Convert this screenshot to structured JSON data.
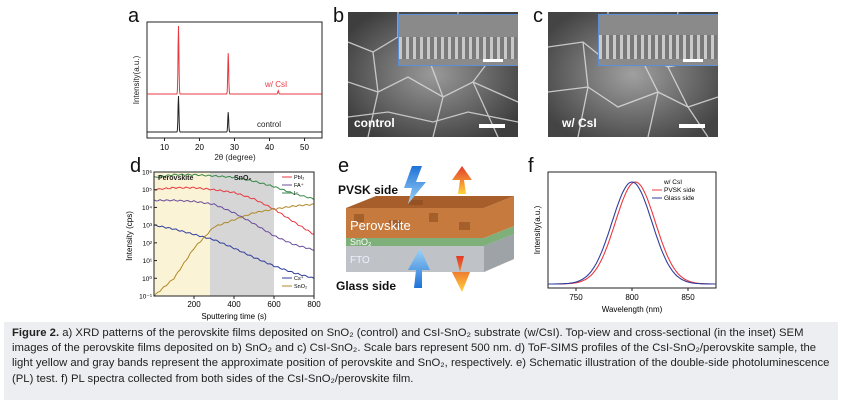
{
  "panel_letters": {
    "a": "a",
    "b": "b",
    "c": "c",
    "d": "d",
    "e": "e",
    "f": "f"
  },
  "panel_a": {
    "ylabel": "Intensity(a.u.)",
    "xlabel": "2θ (degree)",
    "xticks": [
      "10",
      "20",
      "30",
      "40",
      "50"
    ],
    "series": [
      {
        "name": "w/ CsI",
        "color": "#e8393f"
      },
      {
        "name": "control",
        "color": "#222222"
      }
    ]
  },
  "panel_b": {
    "label": "control"
  },
  "panel_c": {
    "label": "w/ CsI"
  },
  "panel_d": {
    "ylabel": "Intensity (cps)",
    "xlabel": "Sputtering time (s)",
    "yticks": [
      "10⁶",
      "10⁵",
      "10⁴",
      "10³",
      "10²",
      "10¹",
      "10⁰",
      "10⁻¹"
    ],
    "xticks": [
      "200",
      "400",
      "600",
      "800"
    ],
    "band_labels": [
      "Perovskite",
      "SnO₂"
    ],
    "legend_top": [
      "PbI₂",
      "FA⁺",
      "I⁻"
    ],
    "legend_bottom": [
      "Cs⁺",
      "SnO₂"
    ]
  },
  "panel_e": {
    "top_label": "PVSK side",
    "bottom_label": "Glass side",
    "layers": [
      "Perovskite",
      "SnO₂",
      "FTO"
    ]
  },
  "panel_f": {
    "ylabel": "Intensity(a.u.)",
    "xlabel": "Wavelength (nm)",
    "xticks": [
      "750",
      "800",
      "850"
    ],
    "legend_title": "w/ CsI",
    "series": [
      {
        "name": "PVSK side",
        "color": "#e8393f"
      },
      {
        "name": "Glass side",
        "color": "#2f3d9c"
      }
    ]
  },
  "chart_data": [
    {
      "type": "line",
      "title": "",
      "xlabel": "2θ (degree)",
      "ylabel": "Intensity(a.u.)",
      "xlim": [
        5,
        55
      ],
      "series": [
        {
          "name": "w/ CsI",
          "peaks": [
            [
              14.0,
              1.0
            ],
            [
              28.2,
              0.6
            ],
            [
              42.5,
              0.05
            ]
          ]
        },
        {
          "name": "control",
          "peaks": [
            [
              14.0,
              1.0
            ],
            [
              28.2,
              0.55
            ]
          ]
        }
      ]
    },
    {
      "type": "line",
      "title": "",
      "xlabel": "Sputtering time (s)",
      "ylabel": "Intensity (cps)",
      "xlim": [
        0,
        800
      ],
      "yscale": "log",
      "bands": [
        [
          0,
          280
        ],
        [
          280,
          600
        ]
      ],
      "series": [
        {
          "name": "PbI₂",
          "x": [
            0,
            100,
            200,
            300,
            400,
            500,
            600,
            700,
            800
          ],
          "y": [
            100000.0,
            130000.0,
            130000.0,
            100000.0,
            70000.0,
            30000.0,
            8000.0,
            1500.0,
            300.0
          ]
        },
        {
          "name": "FA⁺",
          "x": [
            0,
            100,
            200,
            300,
            400,
            500,
            600,
            700,
            800
          ],
          "y": [
            25000.0,
            25000.0,
            22000.0,
            15000.0,
            5000.0,
            1200.0,
            250.0,
            80,
            40
          ]
        },
        {
          "name": "I⁻",
          "x": [
            0,
            100,
            200,
            300,
            400,
            500,
            600,
            700,
            800
          ],
          "y": [
            500000.0,
            700000.0,
            700000.0,
            600000.0,
            500000.0,
            300000.0,
            150000.0,
            60000.0,
            30000.0
          ]
        },
        {
          "name": "Cs⁺",
          "x": [
            0,
            100,
            200,
            300,
            400,
            500,
            600,
            700,
            800
          ],
          "y": [
            1000.0,
            600.0,
            300.0,
            150.0,
            50,
            15,
            5,
            2,
            1
          ]
        },
        {
          "name": "SnO₂",
          "x": [
            0,
            100,
            200,
            300,
            400,
            500,
            600,
            700,
            800
          ],
          "y": [
            0.1,
            1,
            50,
            800,
            2000.0,
            5000.0,
            8000.0,
            12000.0,
            15000.0
          ]
        }
      ]
    },
    {
      "type": "line",
      "title": "",
      "xlabel": "Wavelength (nm)",
      "ylabel": "Intensity(a.u.)",
      "xlim": [
        725,
        875
      ],
      "series": [
        {
          "name": "PVSK side",
          "peak": 803,
          "fwhm": 42
        },
        {
          "name": "Glass side",
          "peak": 800,
          "fwhm": 42
        }
      ]
    }
  ],
  "caption": {
    "fig": "Figure 2.",
    "text": " a) XRD patterns of the perovskite films deposited on SnO₂ (control) and CsI-SnO₂ substrate (w/CsI). Top-view and cross-sectional (in the inset) SEM images of the perovskite films deposited on b) SnO₂ and c) CsI-SnO₂. Scale bars represent 500 nm. d) ToF-SIMS profiles of the CsI-SnO₂/perovskite sample, the light yellow and gray bands represent the approximate position of perovskite and SnO₂, respectively. e) Schematic illustration of the double-side photoluminescence (PL) test. f) PL spectra collected from both sides of the CsI-SnO₂/perovskite film."
  }
}
